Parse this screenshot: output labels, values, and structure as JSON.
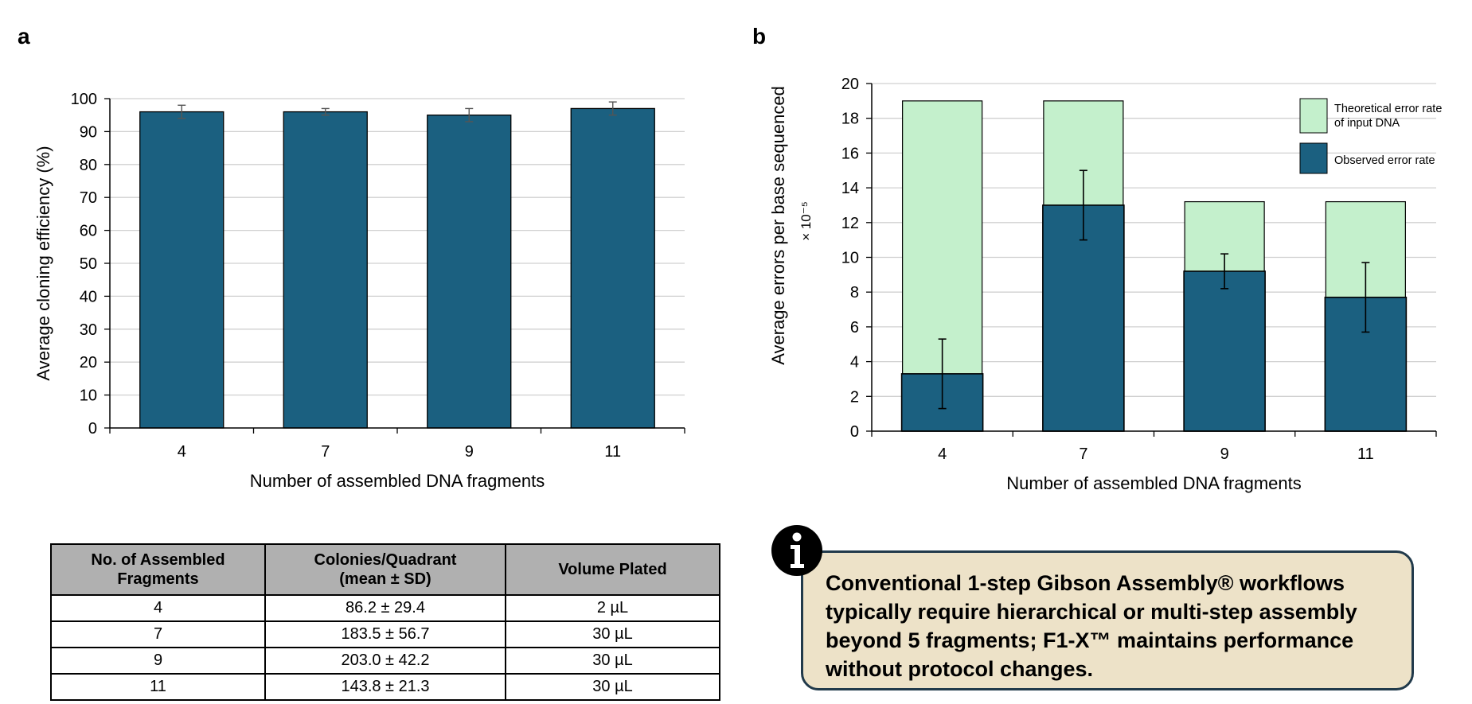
{
  "panel_a": {
    "label": "a",
    "chart_data": {
      "type": "bar",
      "categories": [
        "4",
        "7",
        "9",
        "11"
      ],
      "values": [
        96,
        96,
        95,
        97
      ],
      "error": [
        2,
        1,
        2,
        2
      ],
      "xlabel": "Number of assembled DNA fragments",
      "ylabel": "Average cloning efficiency (%)",
      "ylim": [
        0,
        100
      ],
      "yticks": [
        0,
        10,
        20,
        30,
        40,
        50,
        60,
        70,
        80,
        90,
        100
      ],
      "grid": true,
      "bar_color": "#1b6080"
    }
  },
  "panel_b": {
    "label": "b",
    "chart_data": {
      "type": "bar",
      "categories": [
        "4",
        "7",
        "9",
        "11"
      ],
      "series": [
        {
          "name": "Theoretical error rate of input DNA",
          "values": [
            19,
            19,
            13.2,
            13.2
          ],
          "color": "#c4f0cc"
        },
        {
          "name": "Observed error rate",
          "values": [
            3.3,
            13,
            9.2,
            7.7
          ],
          "error": [
            2,
            2,
            1,
            2
          ],
          "color": "#1b6080"
        }
      ],
      "xlabel": "Number of assembled DNA fragments",
      "ylabel": "Average errors per base sequenced",
      "ylabel_unit": "× 10⁻⁵",
      "ylim": [
        0,
        20
      ],
      "yticks": [
        0,
        2,
        4,
        6,
        8,
        10,
        12,
        14,
        16,
        18,
        20
      ],
      "grid": true,
      "legend_position": "top-right",
      "legend_lines": [
        [
          "Theoretical error rate",
          "of input DNA"
        ],
        [
          "Observed  error rate"
        ]
      ]
    }
  },
  "table": {
    "headers": [
      [
        "No. of Assembled",
        "Fragments"
      ],
      [
        "Colonies/Quadrant",
        "(mean ± SD)"
      ],
      [
        "Volume Plated"
      ]
    ],
    "rows": [
      [
        "4",
        "86.2 ± 29.4",
        "2 µL"
      ],
      [
        "7",
        "183.5 ± 56.7",
        "30 µL"
      ],
      [
        "9",
        "203.0 ± 42.2",
        "30 µL"
      ],
      [
        "11",
        "143.8 ± 21.3",
        "30 µL"
      ]
    ]
  },
  "callout": {
    "icon": "info-icon",
    "lines": [
      "Conventional 1-step Gibson Assembly®  workflows",
      "typically require hierarchical or multi-step assembly",
      "beyond 5 fragments; F1-X™ maintains performance",
      "without protocol changes."
    ]
  }
}
